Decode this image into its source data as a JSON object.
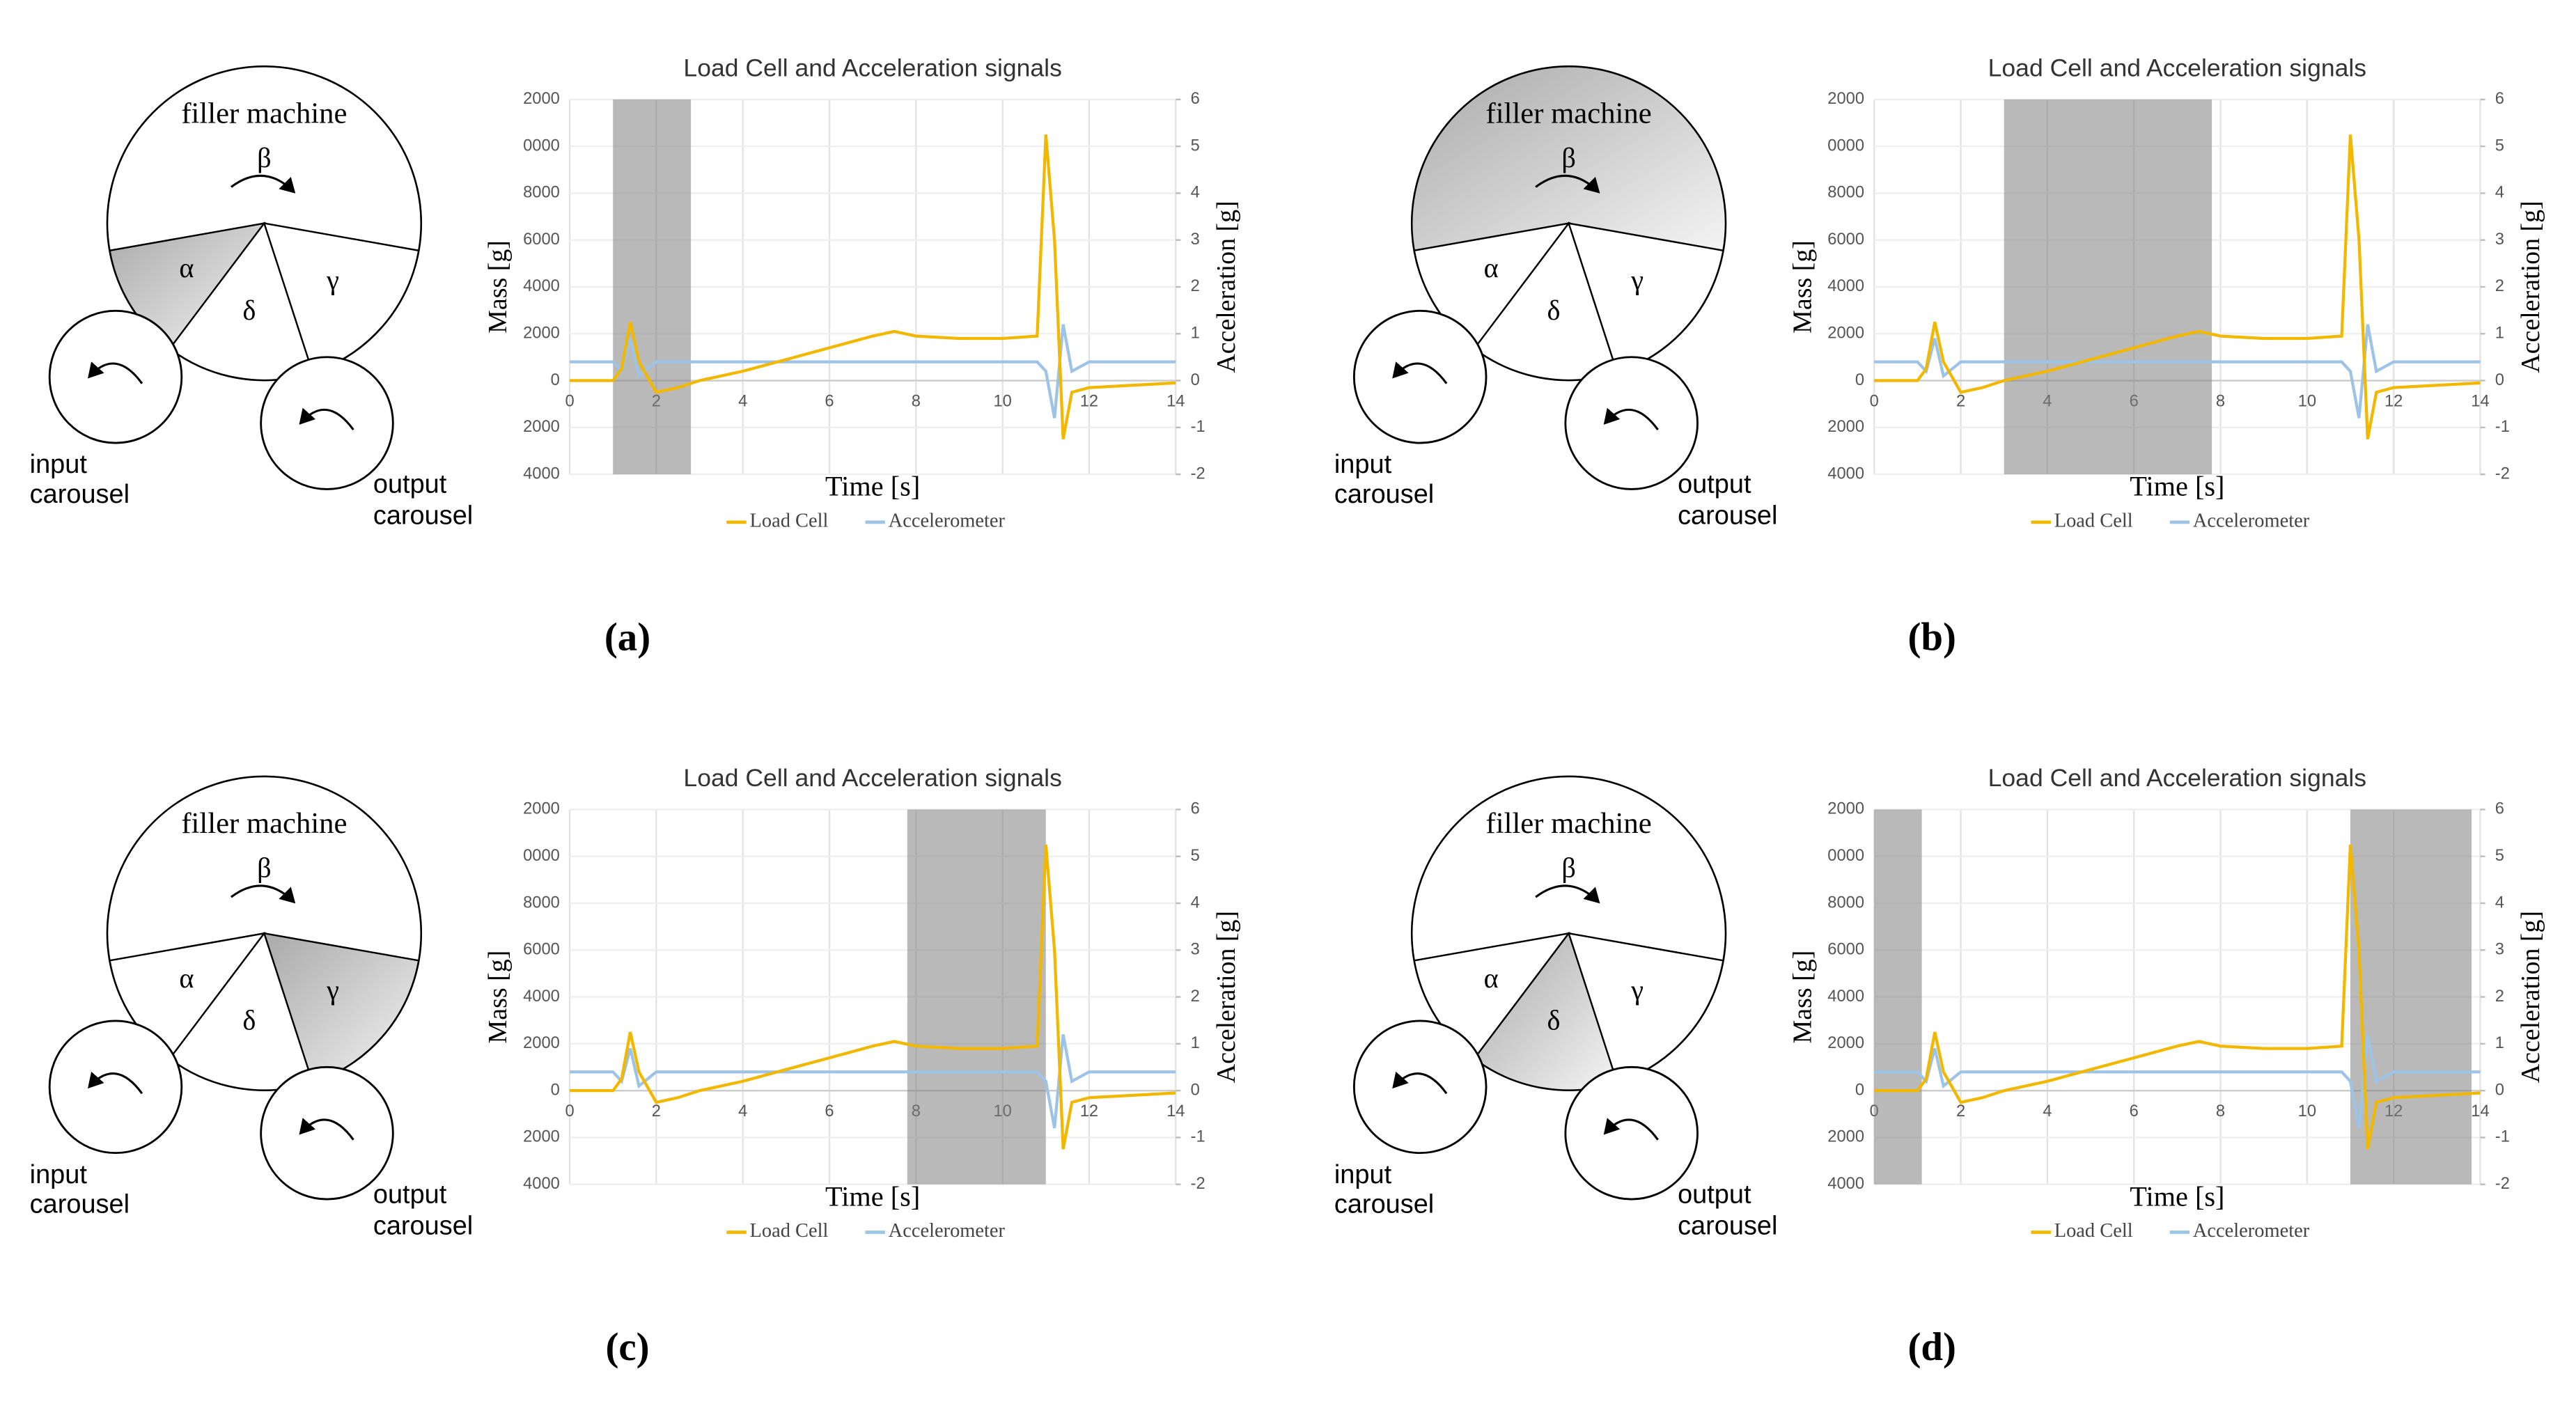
{
  "panels": [
    {
      "caption": "(a)",
      "diagram": {
        "machine": "filler machine",
        "sectors": [
          "β",
          "α",
          "δ",
          "γ"
        ],
        "shaded_sector": 1,
        "input": [
          "input",
          "carousel"
        ],
        "output": [
          "output",
          "carousel"
        ]
      }
    },
    {
      "caption": "(b)",
      "diagram": {
        "machine": "filler machine",
        "sectors": [
          "β",
          "α",
          "δ",
          "γ"
        ],
        "shaded_sector": 0,
        "input": [
          "input",
          "carousel"
        ],
        "output": [
          "output",
          "carousel"
        ]
      }
    },
    {
      "caption": "(c)",
      "diagram": {
        "machine": "filler machine",
        "sectors": [
          "β",
          "α",
          "δ",
          "γ"
        ],
        "shaded_sector": 3,
        "input": [
          "input",
          "carousel"
        ],
        "output": [
          "output",
          "carousel"
        ]
      }
    },
    {
      "caption": "(d)",
      "diagram": {
        "machine": "filler machine",
        "sectors": [
          "β",
          "α",
          "δ",
          "γ"
        ],
        "shaded_sector": 2,
        "input": [
          "input",
          "carousel"
        ],
        "output": [
          "output",
          "carousel"
        ]
      }
    }
  ],
  "chart_data": [
    {
      "type": "line",
      "title": "Load Cell and Acceleration signals",
      "xlabel": "Time [s]",
      "ylabel": "Mass [g]",
      "y2label": "Acceleration [g]",
      "x": [
        0,
        0.5,
        1,
        1.2,
        1.4,
        1.6,
        2,
        2.5,
        3,
        4,
        5,
        6,
        7,
        7.5,
        8,
        9,
        10,
        10.8,
        11,
        11.2,
        11.4,
        11.6,
        12,
        13,
        14
      ],
      "series": [
        {
          "name": "Load Cell",
          "color": "#f2b800",
          "values": [
            0,
            0,
            0,
            500,
            2500,
            800,
            -500,
            -300,
            0,
            400,
            900,
            1400,
            1900,
            2100,
            1900,
            1800,
            1800,
            1900,
            10500,
            6000,
            -2500,
            -500,
            -300,
            -200,
            -100
          ]
        },
        {
          "name": "Accelerometer",
          "color": "#9dc3e6",
          "axis": "y2",
          "values": [
            0.4,
            0.4,
            0.4,
            0.2,
            0.9,
            0.1,
            0.4,
            0.4,
            0.4,
            0.4,
            0.4,
            0.4,
            0.4,
            0.4,
            0.4,
            0.4,
            0.4,
            0.4,
            0.2,
            -0.8,
            1.2,
            0.2,
            0.4,
            0.4,
            0.4
          ]
        }
      ],
      "xlim": [
        0,
        14
      ],
      "xticks": [
        0,
        2,
        4,
        6,
        8,
        10,
        12,
        14
      ],
      "ylim": [
        -4000,
        12000
      ],
      "yticks": [
        {
          "value": -4000,
          "label": "4000"
        },
        {
          "value": -2000,
          "label": "2000"
        },
        0,
        {
          "value": 2000,
          "label": "2000"
        },
        {
          "value": 4000,
          "label": "4000"
        },
        {
          "value": 6000,
          "label": "6000"
        },
        {
          "value": 8000,
          "label": "8000"
        },
        {
          "value": 10000,
          "label": "0000"
        },
        {
          "value": 12000,
          "label": "2000"
        }
      ],
      "y2lim": [
        -2,
        6
      ],
      "y2ticks": [
        -2,
        -1,
        0,
        1,
        2,
        3,
        4,
        5,
        6
      ],
      "grid": true,
      "legend": "bottom",
      "shaded_regions": [
        [
          1,
          2.8
        ]
      ]
    },
    {
      "type": "line",
      "title": "Load Cell and Acceleration signals",
      "xlabel": "Time [s]",
      "ylabel": "Mass [g]",
      "y2label": "Acceleration [g]",
      "x": [
        0,
        0.5,
        1,
        1.2,
        1.4,
        1.6,
        2,
        2.5,
        3,
        4,
        5,
        6,
        7,
        7.5,
        8,
        9,
        10,
        10.8,
        11,
        11.2,
        11.4,
        11.6,
        12,
        13,
        14
      ],
      "series": [
        {
          "name": "Load Cell",
          "color": "#f2b800",
          "values": [
            0,
            0,
            0,
            500,
            2500,
            800,
            -500,
            -300,
            0,
            400,
            900,
            1400,
            1900,
            2100,
            1900,
            1800,
            1800,
            1900,
            10500,
            6000,
            -2500,
            -500,
            -300,
            -200,
            -100
          ]
        },
        {
          "name": "Accelerometer",
          "color": "#9dc3e6",
          "axis": "y2",
          "values": [
            0.4,
            0.4,
            0.4,
            0.2,
            0.9,
            0.1,
            0.4,
            0.4,
            0.4,
            0.4,
            0.4,
            0.4,
            0.4,
            0.4,
            0.4,
            0.4,
            0.4,
            0.4,
            0.2,
            -0.8,
            1.2,
            0.2,
            0.4,
            0.4,
            0.4
          ]
        }
      ],
      "xlim": [
        0,
        14
      ],
      "xticks": [
        0,
        2,
        4,
        6,
        8,
        10,
        12,
        14
      ],
      "ylim": [
        -4000,
        12000
      ],
      "yticks": [
        {
          "value": -4000,
          "label": "4000"
        },
        {
          "value": -2000,
          "label": "2000"
        },
        0,
        {
          "value": 2000,
          "label": "2000"
        },
        {
          "value": 4000,
          "label": "4000"
        },
        {
          "value": 6000,
          "label": "6000"
        },
        {
          "value": 8000,
          "label": "8000"
        },
        {
          "value": 10000,
          "label": "0000"
        },
        {
          "value": 12000,
          "label": "2000"
        }
      ],
      "y2lim": [
        -2,
        6
      ],
      "y2ticks": [
        -2,
        -1,
        0,
        1,
        2,
        3,
        4,
        5,
        6
      ],
      "grid": true,
      "legend": "bottom",
      "shaded_regions": [
        [
          3,
          7.8
        ]
      ]
    },
    {
      "type": "line",
      "title": "Load Cell and Acceleration signals",
      "xlabel": "Time [s]",
      "ylabel": "Mass [g]",
      "y2label": "Acceleration [g]",
      "x": [
        0,
        0.5,
        1,
        1.2,
        1.4,
        1.6,
        2,
        2.5,
        3,
        4,
        5,
        6,
        7,
        7.5,
        8,
        9,
        10,
        10.8,
        11,
        11.2,
        11.4,
        11.6,
        12,
        13,
        14
      ],
      "series": [
        {
          "name": "Load Cell",
          "color": "#f2b800",
          "values": [
            0,
            0,
            0,
            500,
            2500,
            800,
            -500,
            -300,
            0,
            400,
            900,
            1400,
            1900,
            2100,
            1900,
            1800,
            1800,
            1900,
            10500,
            6000,
            -2500,
            -500,
            -300,
            -200,
            -100
          ]
        },
        {
          "name": "Accelerometer",
          "color": "#9dc3e6",
          "axis": "y2",
          "values": [
            0.4,
            0.4,
            0.4,
            0.2,
            0.9,
            0.1,
            0.4,
            0.4,
            0.4,
            0.4,
            0.4,
            0.4,
            0.4,
            0.4,
            0.4,
            0.4,
            0.4,
            0.4,
            0.2,
            -0.8,
            1.2,
            0.2,
            0.4,
            0.4,
            0.4
          ]
        }
      ],
      "xlim": [
        0,
        14
      ],
      "xticks": [
        0,
        2,
        4,
        6,
        8,
        10,
        12,
        14
      ],
      "ylim": [
        -4000,
        12000
      ],
      "yticks": [
        {
          "value": -4000,
          "label": "4000"
        },
        {
          "value": -2000,
          "label": "2000"
        },
        0,
        {
          "value": 2000,
          "label": "2000"
        },
        {
          "value": 4000,
          "label": "4000"
        },
        {
          "value": 6000,
          "label": "6000"
        },
        {
          "value": 8000,
          "label": "8000"
        },
        {
          "value": 10000,
          "label": "0000"
        },
        {
          "value": 12000,
          "label": "2000"
        }
      ],
      "y2lim": [
        -2,
        6
      ],
      "y2ticks": [
        -2,
        -1,
        0,
        1,
        2,
        3,
        4,
        5,
        6
      ],
      "grid": true,
      "legend": "bottom",
      "shaded_regions": [
        [
          7.8,
          11
        ]
      ]
    },
    {
      "type": "line",
      "title": "Load Cell and Acceleration signals",
      "xlabel": "Time [s]",
      "ylabel": "Mass [g]",
      "y2label": "Acceleration [g]",
      "x": [
        0,
        0.5,
        1,
        1.2,
        1.4,
        1.6,
        2,
        2.5,
        3,
        4,
        5,
        6,
        7,
        7.5,
        8,
        9,
        10,
        10.8,
        11,
        11.2,
        11.4,
        11.6,
        12,
        13,
        14
      ],
      "series": [
        {
          "name": "Load Cell",
          "color": "#f2b800",
          "values": [
            0,
            0,
            0,
            500,
            2500,
            800,
            -500,
            -300,
            0,
            400,
            900,
            1400,
            1900,
            2100,
            1900,
            1800,
            1800,
            1900,
            10500,
            6000,
            -2500,
            -500,
            -300,
            -200,
            -100
          ]
        },
        {
          "name": "Accelerometer",
          "color": "#9dc3e6",
          "axis": "y2",
          "values": [
            0.4,
            0.4,
            0.4,
            0.2,
            0.9,
            0.1,
            0.4,
            0.4,
            0.4,
            0.4,
            0.4,
            0.4,
            0.4,
            0.4,
            0.4,
            0.4,
            0.4,
            0.4,
            0.2,
            -0.8,
            1.2,
            0.2,
            0.4,
            0.4,
            0.4
          ]
        }
      ],
      "xlim": [
        0,
        14
      ],
      "xticks": [
        0,
        2,
        4,
        6,
        8,
        10,
        12,
        14
      ],
      "ylim": [
        -4000,
        12000
      ],
      "yticks": [
        {
          "value": -4000,
          "label": "4000"
        },
        {
          "value": -2000,
          "label": "2000"
        },
        0,
        {
          "value": 2000,
          "label": "2000"
        },
        {
          "value": 4000,
          "label": "4000"
        },
        {
          "value": 6000,
          "label": "6000"
        },
        {
          "value": 8000,
          "label": "8000"
        },
        {
          "value": 10000,
          "label": "0000"
        },
        {
          "value": 12000,
          "label": "2000"
        }
      ],
      "y2lim": [
        -2,
        6
      ],
      "y2ticks": [
        -2,
        -1,
        0,
        1,
        2,
        3,
        4,
        5,
        6
      ],
      "grid": true,
      "legend": "bottom",
      "shaded_regions": [
        [
          0,
          1.1
        ],
        [
          11,
          13.8
        ]
      ]
    }
  ]
}
